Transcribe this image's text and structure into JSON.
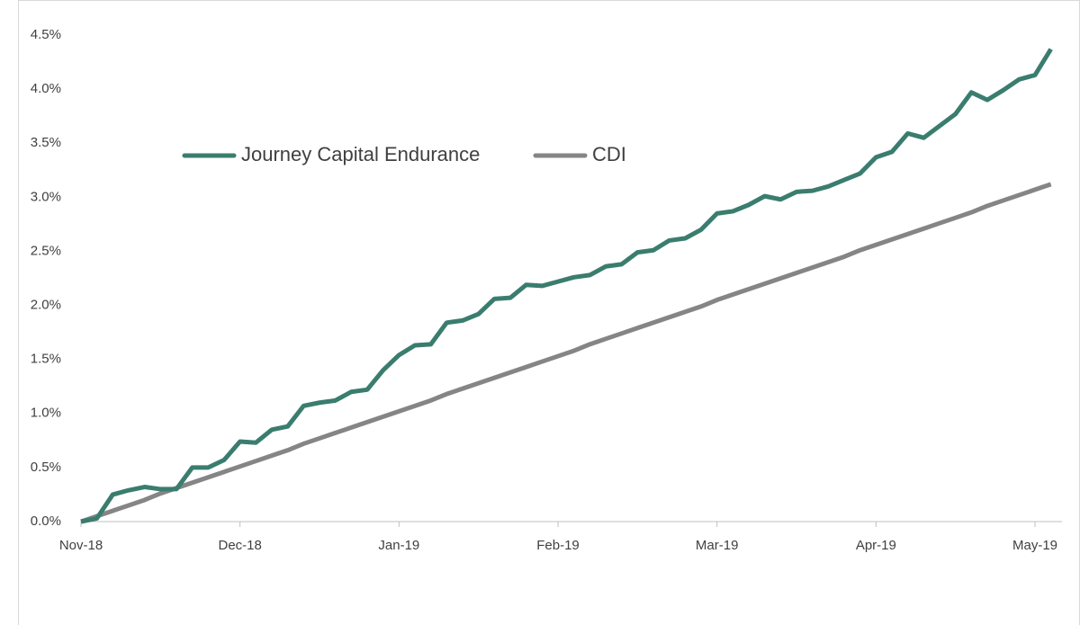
{
  "chart_data": {
    "type": "line",
    "categories": [
      "Nov-18",
      null,
      null,
      null,
      null,
      null,
      null,
      null,
      null,
      null,
      "Dec-18",
      null,
      null,
      null,
      null,
      null,
      null,
      null,
      null,
      null,
      "Jan-19",
      null,
      null,
      null,
      null,
      null,
      null,
      null,
      null,
      null,
      "Feb-19",
      null,
      null,
      null,
      null,
      null,
      null,
      null,
      null,
      null,
      "Mar-19",
      null,
      null,
      null,
      null,
      null,
      null,
      null,
      null,
      null,
      "Apr-19",
      null,
      null,
      null,
      null,
      null,
      null,
      null,
      null,
      null,
      "May-19",
      null
    ],
    "series": [
      {
        "name": "Journey Capital Endurance",
        "color": "#3a7d6e",
        "values": [
          0,
          0.03,
          0.25,
          0.29,
          0.32,
          0.3,
          0.3,
          0.5,
          0.5,
          0.57,
          0.74,
          0.73,
          0.85,
          0.88,
          1.07,
          1.1,
          1.12,
          1.2,
          1.22,
          1.4,
          1.54,
          1.63,
          1.64,
          1.84,
          1.86,
          1.92,
          2.06,
          2.07,
          2.19,
          2.18,
          2.22,
          2.26,
          2.28,
          2.36,
          2.38,
          2.49,
          2.51,
          2.6,
          2.62,
          2.7,
          2.85,
          2.87,
          2.93,
          3.01,
          2.98,
          3.05,
          3.06,
          3.1,
          3.16,
          3.22,
          3.37,
          3.42,
          3.59,
          3.55,
          3.66,
          3.77,
          3.97,
          3.9,
          3.99,
          4.09,
          4.13,
          4.37
        ]
      },
      {
        "name": "CDI",
        "color": "#858585",
        "values": [
          0,
          0.05,
          0.1,
          0.15,
          0.2,
          0.26,
          0.31,
          0.36,
          0.41,
          0.46,
          0.51,
          0.56,
          0.61,
          0.66,
          0.72,
          0.77,
          0.82,
          0.87,
          0.92,
          0.97,
          1.02,
          1.07,
          1.12,
          1.18,
          1.23,
          1.28,
          1.33,
          1.38,
          1.43,
          1.48,
          1.53,
          1.58,
          1.64,
          1.69,
          1.74,
          1.79,
          1.84,
          1.89,
          1.94,
          1.99,
          2.05,
          2.1,
          2.15,
          2.2,
          2.25,
          2.3,
          2.35,
          2.4,
          2.45,
          2.51,
          2.56,
          2.61,
          2.66,
          2.71,
          2.76,
          2.81,
          2.86,
          2.92,
          2.97,
          3.02,
          3.07,
          3.12
        ]
      }
    ],
    "ylim": [
      0,
      4.5
    ],
    "yticks": [
      {
        "value": 0,
        "label": "0.0%"
      },
      {
        "value": 0.5,
        "label": "0.5%"
      },
      {
        "value": 1,
        "label": "1.0%"
      },
      {
        "value": 1.5,
        "label": "1.5%"
      },
      {
        "value": 2,
        "label": "2.0%"
      },
      {
        "value": 2.5,
        "label": "2.5%"
      },
      {
        "value": 3,
        "label": "3.0%"
      },
      {
        "value": 3.5,
        "label": "3.5%"
      },
      {
        "value": 4,
        "label": "4.0%"
      },
      {
        "value": 4.5,
        "label": "4.5%"
      }
    ],
    "grid": false,
    "legend": "top-left"
  }
}
